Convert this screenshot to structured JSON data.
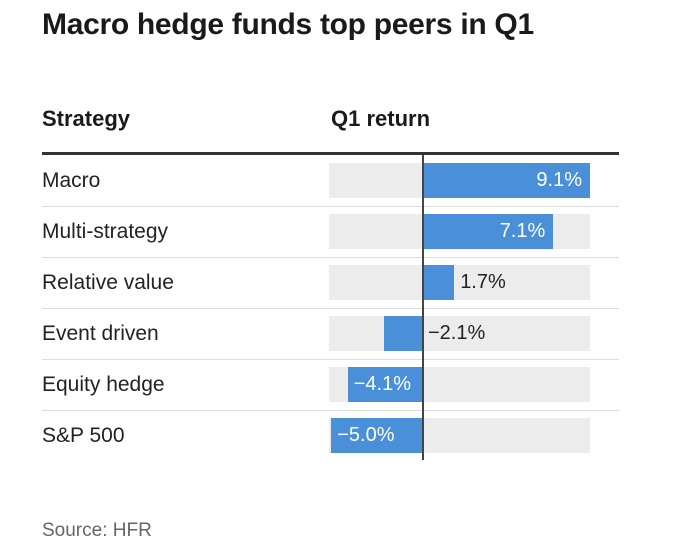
{
  "title": "Macro hedge funds top peers in Q1",
  "headers": {
    "strategy": "Strategy",
    "return": "Q1 return"
  },
  "source": "Source: HFR",
  "colors": {
    "bar": "#4a90d9",
    "track": "#ececec"
  },
  "chart_data": {
    "type": "bar",
    "orientation": "horizontal",
    "title": "Macro hedge funds top peers in Q1",
    "categories": [
      "Macro",
      "Multi-strategy",
      "Relative value",
      "Event driven",
      "Equity hedge",
      "S&P 500"
    ],
    "values": [
      9.1,
      7.1,
      1.7,
      -2.1,
      -4.1,
      -5.0
    ],
    "labels": [
      "9.1%",
      "7.1%",
      "1.7%",
      "−2.1%",
      "−4.1%",
      "−5.0%"
    ],
    "xlim": [
      -5.0,
      9.1
    ],
    "xlabel": "Q1 return",
    "ylabel": "Strategy"
  }
}
